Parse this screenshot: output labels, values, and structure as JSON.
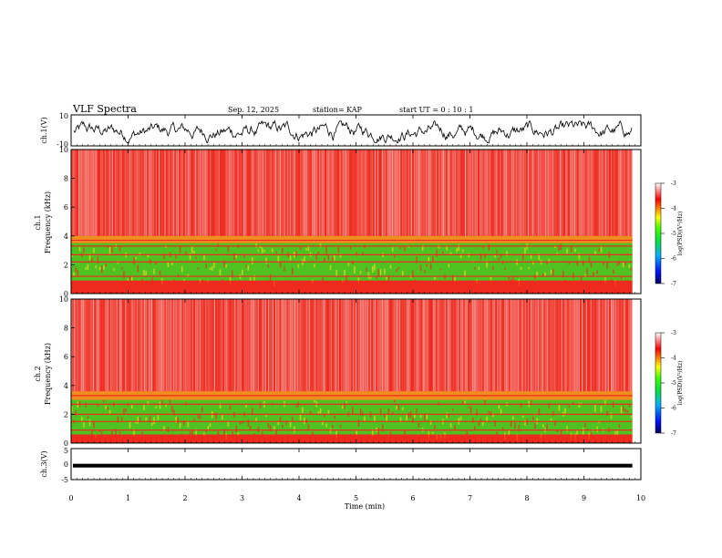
{
  "header": {
    "title": "VLF Spectra",
    "date": "Sep. 12, 2025",
    "station": "station= KAP",
    "start_ut": "start  UT =   0  : 10 : 1"
  },
  "colors": {
    "spectrogram_background": "#ee2a1e",
    "low_band": "#33dd22",
    "mid_band": "#f0e020",
    "streak": "#ffffff",
    "trace": "#000000"
  },
  "chart_data": [
    {
      "type": "line",
      "panel": "ch1_waveform",
      "ylabel": "ch.1(V)",
      "ylim": [
        -10,
        10
      ],
      "yticks": [
        "10",
        "-10"
      ],
      "xlim": [
        0,
        10
      ],
      "amplitude_range": [
        -8,
        6
      ],
      "description_values": {
        "mean": -1,
        "peak": 6,
        "trough": -8
      }
    },
    {
      "type": "heatmap",
      "panel": "ch1_spectrogram",
      "ylabel": "ch.1\nFrequency (kHz)",
      "ylabel_line1": "ch.1",
      "ylabel_line2": "Frequency  (kHz)",
      "ylim": [
        0,
        10
      ],
      "yticks": [
        "0",
        "2",
        "4",
        "6",
        "8",
        "10"
      ],
      "xlim": [
        0,
        9.85
      ],
      "green_band_khz": [
        0.9,
        3.5
      ],
      "yellow_band_khz": [
        3.5,
        4.0
      ],
      "hum_lines_khz": [
        1.2,
        2.2,
        2.7,
        3.3,
        3.7
      ],
      "colorbar": {
        "label": "log(PSD)(V²/Hz)",
        "range": [
          -7,
          -3
        ],
        "ticks": [
          "-3",
          "-4",
          "-5",
          "-6",
          "-7"
        ]
      }
    },
    {
      "type": "heatmap",
      "panel": "ch2_spectrogram",
      "ylabel_line1": "ch.2",
      "ylabel_line2": "Frequency  (kHz)",
      "ylim": [
        0,
        10
      ],
      "yticks": [
        "0",
        "2",
        "4",
        "6",
        "8",
        "10"
      ],
      "xlim": [
        0,
        9.85
      ],
      "green_band_khz": [
        0.6,
        3.0
      ],
      "yellow_band_khz": [
        3.0,
        3.6
      ],
      "hum_lines_khz": [
        0.9,
        1.5,
        2.0,
        2.7,
        3.3
      ],
      "colorbar": {
        "label": "log(PSD)(V²/Hz)",
        "range": [
          -7,
          -3
        ],
        "ticks": [
          "-3",
          "-4",
          "-5",
          "-6",
          "-7"
        ]
      }
    },
    {
      "type": "line",
      "panel": "ch3_waveform",
      "ylabel": "ch.3(V)",
      "ylim": [
        -5,
        5
      ],
      "yticks": [
        "5",
        "0",
        "-5"
      ],
      "level_v": -0.5,
      "band_halfwidth_v": 0.6,
      "xlim": [
        0,
        9.85
      ]
    }
  ],
  "xaxis": {
    "label": "Time  (min)",
    "range": [
      0,
      10
    ],
    "ticks": [
      "0",
      "1",
      "2",
      "3",
      "4",
      "5",
      "6",
      "7",
      "8",
      "9",
      "10"
    ]
  }
}
